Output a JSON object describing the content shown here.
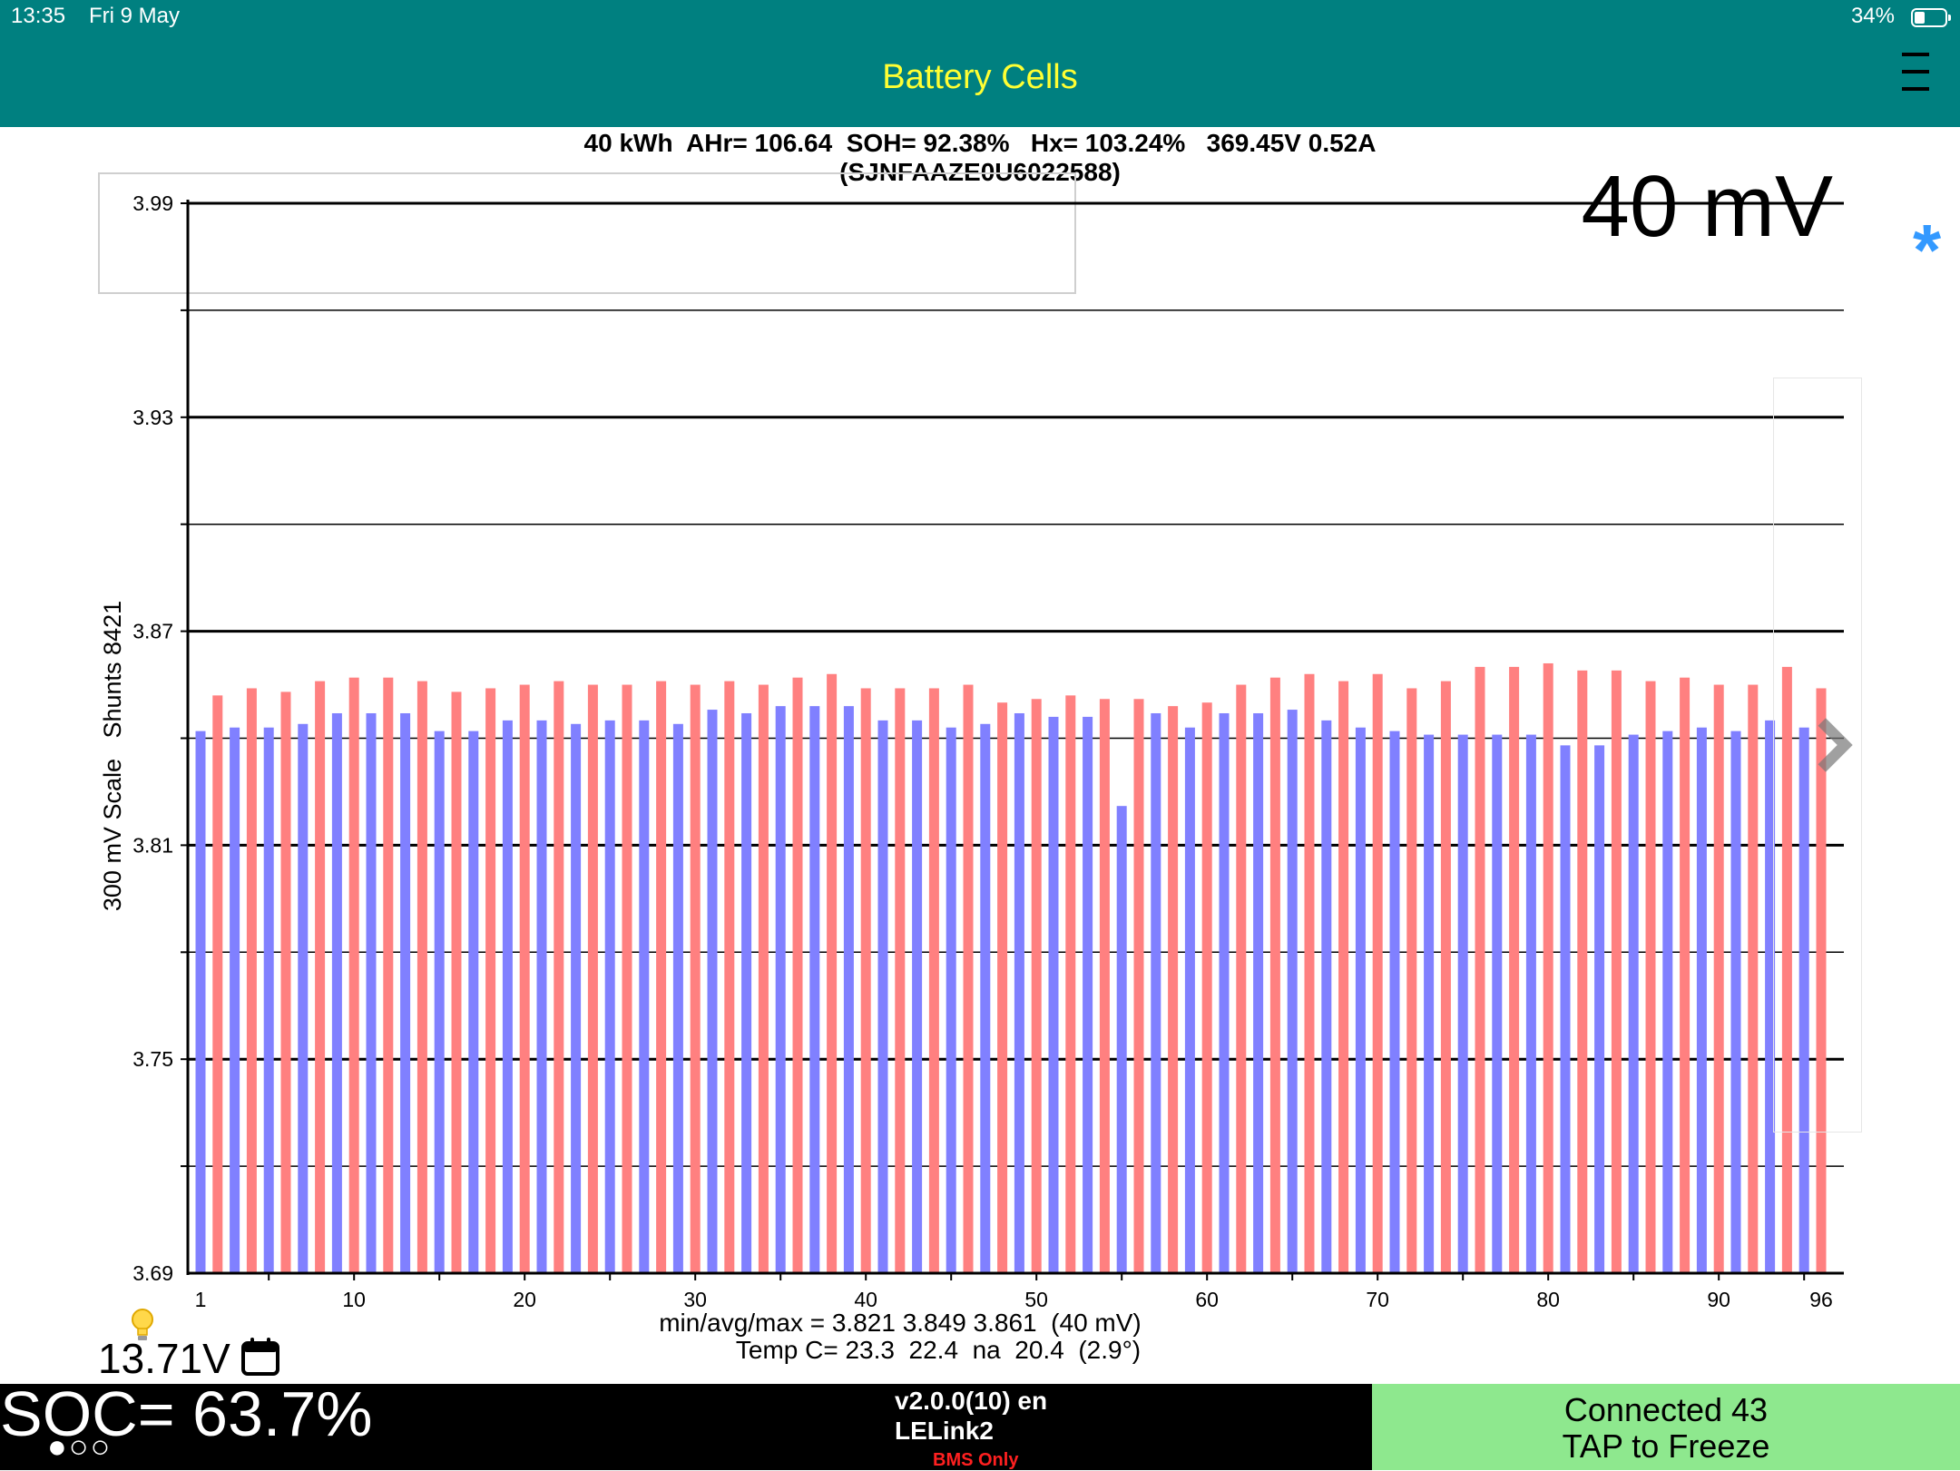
{
  "status_bar": {
    "time": "13:35",
    "date": "Fri 9 May",
    "battery": "34%",
    "battery_level": 0.34
  },
  "header": {
    "title": "Battery Cells",
    "menu_icon": "hamburger-menu-icon"
  },
  "summary": {
    "line": "40 kWh  AHr= 106.64  SOH= 92.38%   Hx= 103.24%   369.45V 0.52A",
    "vin": "(SJNFAAZE0U6022588)"
  },
  "scale_label": "40 mV",
  "bluetooth_icon": "*",
  "nav_icon": "chevron-right-icon",
  "chart_data": {
    "type": "bar",
    "ylabel": "300 mV Scale   Shunts 8421",
    "ylim": [
      3.69,
      3.99
    ],
    "y_ticks": [
      "3.99",
      "3.93",
      "3.87",
      "3.81",
      "3.75",
      "3.69"
    ],
    "x_ticks": [
      "1",
      "10",
      "20",
      "30",
      "40",
      "50",
      "60",
      "70",
      "80",
      "90",
      "96"
    ],
    "grid": true,
    "colors": {
      "odd": "#8080ff",
      "even": "#ff8080"
    },
    "categories": [
      1,
      2,
      3,
      4,
      5,
      6,
      7,
      8,
      9,
      10,
      11,
      12,
      13,
      14,
      15,
      16,
      17,
      18,
      19,
      20,
      21,
      22,
      23,
      24,
      25,
      26,
      27,
      28,
      29,
      30,
      31,
      32,
      33,
      34,
      35,
      36,
      37,
      38,
      39,
      40,
      41,
      42,
      43,
      44,
      45,
      46,
      47,
      48,
      49,
      50,
      51,
      52,
      53,
      54,
      55,
      56,
      57,
      58,
      59,
      60,
      61,
      62,
      63,
      64,
      65,
      66,
      67,
      68,
      69,
      70,
      71,
      72,
      73,
      74,
      75,
      76,
      77,
      78,
      79,
      80,
      81,
      82,
      83,
      84,
      85,
      86,
      87,
      88,
      89,
      90,
      91,
      92,
      93,
      94,
      95,
      96
    ],
    "values": [
      3.842,
      3.852,
      3.843,
      3.854,
      3.843,
      3.853,
      3.844,
      3.856,
      3.847,
      3.857,
      3.847,
      3.857,
      3.847,
      3.856,
      3.842,
      3.853,
      3.842,
      3.854,
      3.845,
      3.855,
      3.845,
      3.856,
      3.844,
      3.855,
      3.845,
      3.855,
      3.845,
      3.856,
      3.844,
      3.855,
      3.848,
      3.856,
      3.847,
      3.855,
      3.849,
      3.857,
      3.849,
      3.858,
      3.849,
      3.854,
      3.845,
      3.854,
      3.845,
      3.854,
      3.843,
      3.855,
      3.844,
      3.85,
      3.847,
      3.851,
      3.846,
      3.852,
      3.846,
      3.851,
      3.821,
      3.851,
      3.847,
      3.849,
      3.843,
      3.85,
      3.847,
      3.855,
      3.847,
      3.857,
      3.848,
      3.858,
      3.845,
      3.856,
      3.843,
      3.858,
      3.842,
      3.854,
      3.841,
      3.856,
      3.841,
      3.86,
      3.841,
      3.86,
      3.841,
      3.861,
      3.838,
      3.859,
      3.838,
      3.859,
      3.841,
      3.856,
      3.842,
      3.857,
      3.843,
      3.855,
      3.842,
      3.855,
      3.845,
      3.86,
      3.843,
      3.854
    ]
  },
  "stats": {
    "minmax": "min/avg/max = 3.821 3.849 3.861  (40 mV)",
    "temp": "Temp C= 23.3  22.4  na  20.4  (2.9°)"
  },
  "aux_voltage": "13.71V",
  "bottom": {
    "soc": "SOC= 63.7%",
    "page_dots": "●○○",
    "version": "v2.0.0(10) en",
    "adapter": "LELink2",
    "mode": "BMS Only",
    "connection": "Connected 43",
    "freeze": "TAP to Freeze"
  }
}
